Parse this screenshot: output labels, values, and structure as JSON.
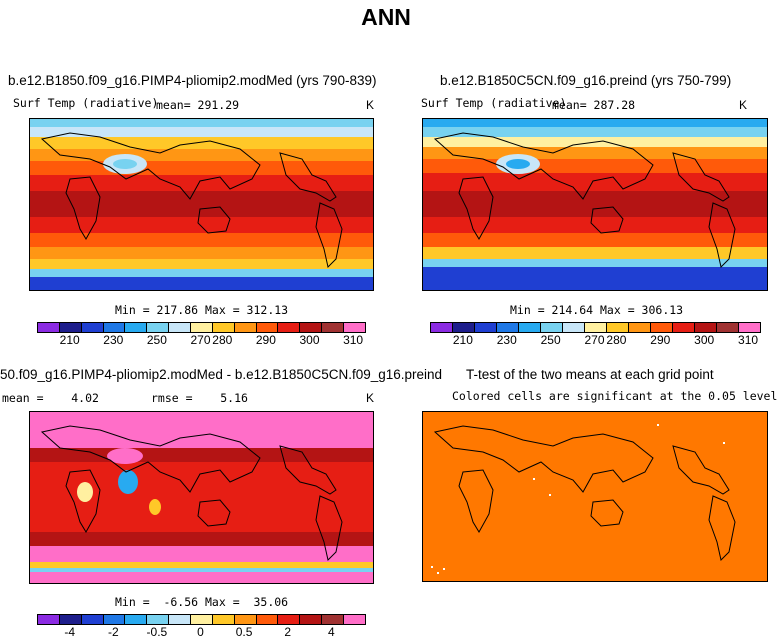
{
  "title": "ANN",
  "panels": {
    "p1": {
      "title": "b.e12.B1850.f09_g16.PIMP4-pliomip2.modMed (yrs 790-839)",
      "variable": "Surf Temp (radiative)",
      "mean_text": "mean= 291.29",
      "unit": "K",
      "minmax": "Min = 217.86 Max = 312.13"
    },
    "p2": {
      "title": "b.e12.B1850C5CN.f09_g16.preind (yrs 750-799)",
      "variable": "Surf Temp (radiative)",
      "mean_text": "mean= 287.28",
      "unit": "K",
      "minmax": "Min = 214.64 Max = 306.13"
    },
    "p3": {
      "title": "50.f09_g16.PIMP4-pliomip2.modMed - b.e12.B1850C5CN.f09_g16.preind",
      "mean_text": "mean =    4.02",
      "rmse_text": "rmse =    5.16",
      "unit": "K",
      "minmax": "Min =  -6.56 Max =  35.06"
    },
    "p4": {
      "title": "T-test of the two means at each grid point",
      "subtitle": "Colored cells are significant at the 0.05 level"
    }
  },
  "colorbar_abs": {
    "colors": [
      "#8b2be2",
      "#1e1e8c",
      "#1f3fd2",
      "#1f78e6",
      "#28aaf0",
      "#78d2f0",
      "#c8e6f8",
      "#fff0a0",
      "#ffc828",
      "#ff9614",
      "#ff5a0a",
      "#e61e14",
      "#b41414",
      "#a03232",
      "#ff6ec8"
    ],
    "ticks": [
      "210",
      "230",
      "250",
      "270",
      "280",
      "290",
      "300",
      "310"
    ]
  },
  "colorbar_diff": {
    "colors": [
      "#8b2be2",
      "#1e1e8c",
      "#1f3fd2",
      "#1f78e6",
      "#28aaf0",
      "#78d2f0",
      "#c8e6f8",
      "#fff0a0",
      "#ffc828",
      "#ff9614",
      "#ff5a0a",
      "#e61e14",
      "#b41414",
      "#a03232",
      "#ff6ec8"
    ],
    "ticks": [
      "-4",
      "-2",
      "-0.5",
      "0",
      "0.5",
      "2",
      "4"
    ]
  }
}
